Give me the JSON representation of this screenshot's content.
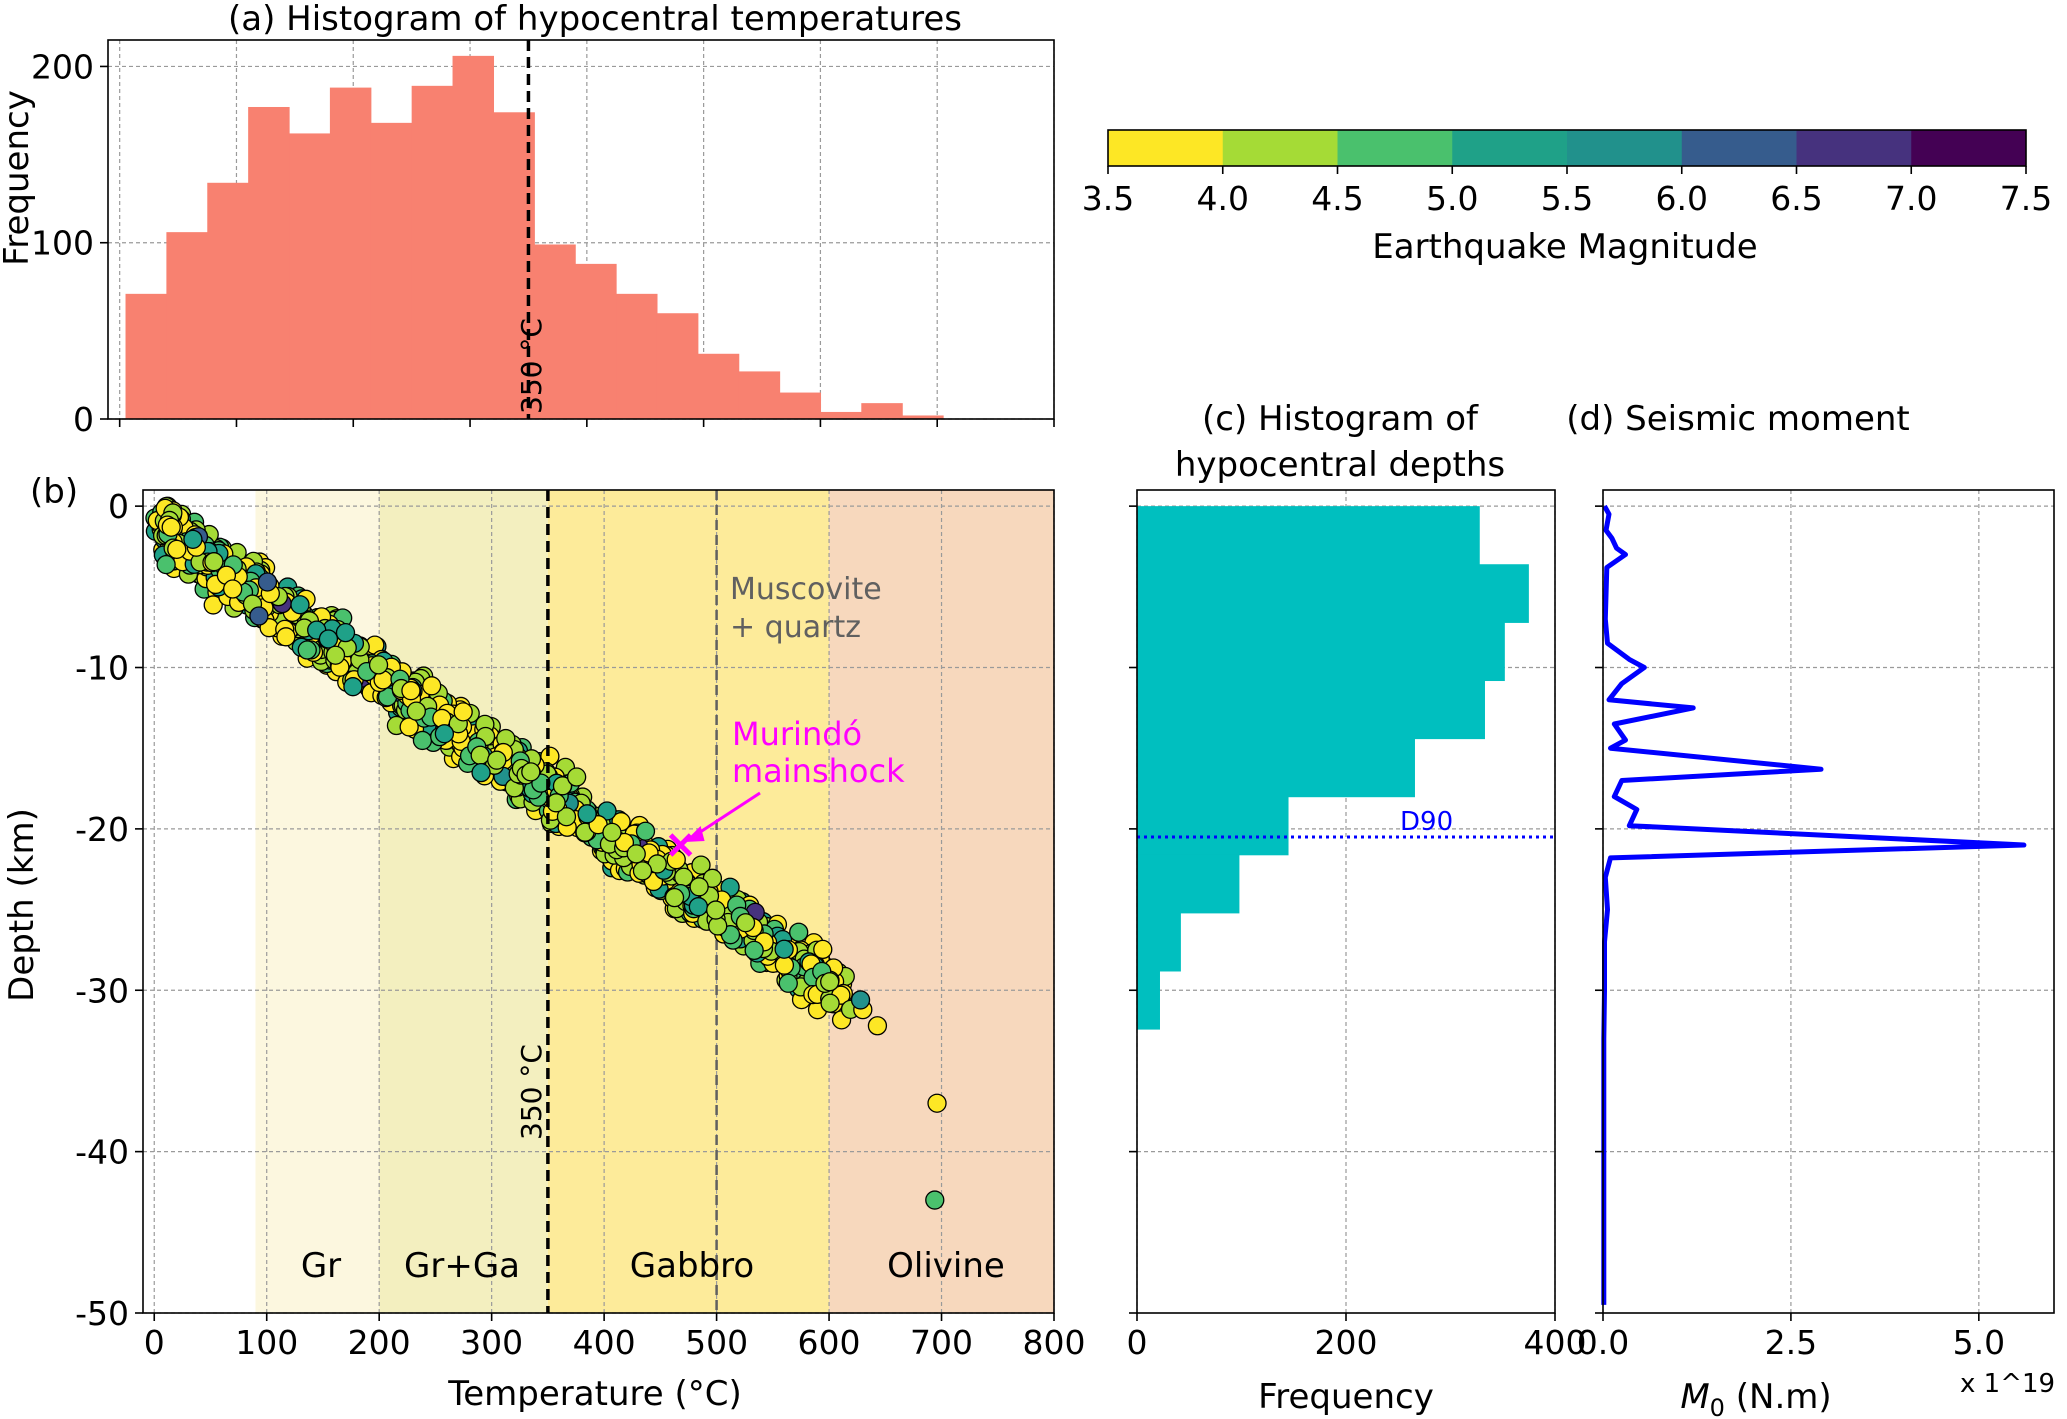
{
  "chart_data": [
    {
      "id": "a",
      "type": "bar",
      "title": "(a) Histogram of hypocentral temperatures",
      "xlabel": "",
      "ylabel": "Frequency",
      "xlim": [
        -10,
        800
      ],
      "ylim": [
        0,
        215
      ],
      "xticks": [
        0,
        100,
        200,
        300,
        400,
        500,
        600,
        700,
        800
      ],
      "yticks": [
        0,
        100,
        200
      ],
      "grid": true,
      "color": "#f88170",
      "bin_edges": [
        5,
        40,
        75,
        110,
        145,
        180,
        215,
        250,
        285,
        320,
        355,
        390,
        425,
        460,
        495,
        530,
        565,
        600,
        635,
        670,
        705
      ],
      "values": [
        71,
        106,
        134,
        177,
        162,
        188,
        168,
        189,
        206,
        174,
        99,
        88,
        71,
        60,
        37,
        27,
        15,
        4,
        9,
        2
      ],
      "vline": {
        "x": 350,
        "label": "350 °C"
      }
    },
    {
      "id": "b",
      "type": "scatter",
      "panel_label": "(b)",
      "xlabel": "Temperature (°C)",
      "ylabel": "Depth (km)",
      "xlim": [
        -10,
        800
      ],
      "ylim": [
        -50,
        1
      ],
      "xticks": [
        0,
        100,
        200,
        300,
        400,
        500,
        600,
        700,
        800
      ],
      "yticks": [
        0,
        -10,
        -20,
        -30,
        -40,
        -50
      ],
      "grid": true,
      "zones": [
        {
          "label": "Gr",
          "x0": 90,
          "x1": 200,
          "color": "#fcf7df"
        },
        {
          "label": "Gr+Ga",
          "x0": 200,
          "x1": 350,
          "color": "#f3efbf"
        },
        {
          "label": "Gabbro",
          "x0": 350,
          "x1": 600,
          "color": "#fdeb9a"
        },
        {
          "label": "Olivine",
          "x0": 600,
          "x1": 800,
          "color": "#f7d8bd"
        }
      ],
      "vlines": [
        {
          "x": 350,
          "label": "350 °C",
          "color": "#000000"
        },
        {
          "x": 500,
          "label_lines": [
            "Muscovite",
            "+ quartz"
          ],
          "color": "#606060"
        }
      ],
      "annotation": {
        "text_lines": [
          "Murindó",
          "mainshock"
        ],
        "x": 468,
        "y": -21,
        "color": "#ff00ff"
      },
      "points_note": "~2000 hypocentres along a band: depth ≈ -(T-10)/18 ± scatter, magnitudes 3.5–7.5",
      "trend": {
        "x_start": 10,
        "x_end": 650,
        "depth_start": -1.5,
        "depth_end": -32
      },
      "outliers": [
        {
          "x": 696,
          "y": -37,
          "mag": 3.7
        },
        {
          "x": 694,
          "y": -43,
          "mag": 4.8
        },
        {
          "x": 643,
          "y": -32.2,
          "mag": 3.8
        },
        {
          "x": 630,
          "y": -31.2,
          "mag": 3.6
        },
        {
          "x": 628,
          "y": -30.6,
          "mag": 5.5
        }
      ]
    },
    {
      "id": "c",
      "type": "bar",
      "orientation": "horizontal",
      "title_lines": [
        "(c) Histogram of",
        "hypocentral depths"
      ],
      "xlabel": "Frequency",
      "xlim": [
        0,
        400
      ],
      "ylim": [
        -50,
        1
      ],
      "xticks": [
        0,
        200,
        400
      ],
      "grid": true,
      "color": "#00bfbf",
      "bin_edges": [
        0,
        -3.6,
        -7.2,
        -10.8,
        -14.4,
        -18.0,
        -21.6,
        -25.2,
        -28.8,
        -32.4
      ],
      "values": [
        328,
        375,
        352,
        333,
        266,
        145,
        98,
        42,
        22
      ],
      "hline": {
        "y": -20.5,
        "label": "D90",
        "color": "#0000ff"
      }
    },
    {
      "id": "d",
      "type": "line",
      "title": "(d) Seismic moment",
      "xlabel_main": "M",
      "xlabel_sub": "0",
      "xlabel_rest": " (N.m)",
      "x_multiplier": "x 1^19",
      "xlim": [
        0,
        6
      ],
      "ylim": [
        -50,
        1
      ],
      "xticks": [
        0.0,
        2.5,
        5.0
      ],
      "xtick_labels": [
        "0.0",
        "2.5",
        "5.0"
      ],
      "grid": true,
      "color": "#0000ff",
      "series": [
        {
          "x": [
            0.02,
            0.08,
            0.04,
            0.12,
            0.18,
            0.3,
            0.05,
            0.03,
            0.06,
            0.35,
            0.55,
            0.25,
            0.08,
            1.2,
            0.15,
            0.3,
            0.1,
            2.9,
            0.25,
            0.15,
            0.45,
            0.35,
            5.6,
            0.1,
            0.03,
            0.06,
            0.02,
            0.02,
            0.01,
            0.01,
            0.01,
            0.01,
            0.01,
            0.01
          ],
          "y": [
            0,
            -0.5,
            -1.5,
            -2.0,
            -2.6,
            -3.0,
            -3.8,
            -7.0,
            -8.5,
            -9.5,
            -10.0,
            -11.0,
            -12.0,
            -12.5,
            -13.5,
            -14.5,
            -15.0,
            -16.3,
            -17.0,
            -18.0,
            -18.8,
            -19.8,
            -21.0,
            -21.8,
            -23.0,
            -25.0,
            -27.0,
            -30.0,
            -33.0,
            -37.0,
            -40.0,
            -43.0,
            -46.0,
            -49.5
          ]
        }
      ]
    }
  ],
  "colorbar": {
    "label": "Earthquake Magnitude",
    "ticks": [
      "3.5",
      "4.0",
      "4.5",
      "5.0",
      "5.5",
      "6.0",
      "6.5",
      "7.0",
      "7.5"
    ],
    "colors": [
      "#fde725",
      "#a5db36",
      "#4ac16d",
      "#1fa188",
      "#21918c",
      "#365c8d",
      "#46327e",
      "#440154"
    ]
  }
}
